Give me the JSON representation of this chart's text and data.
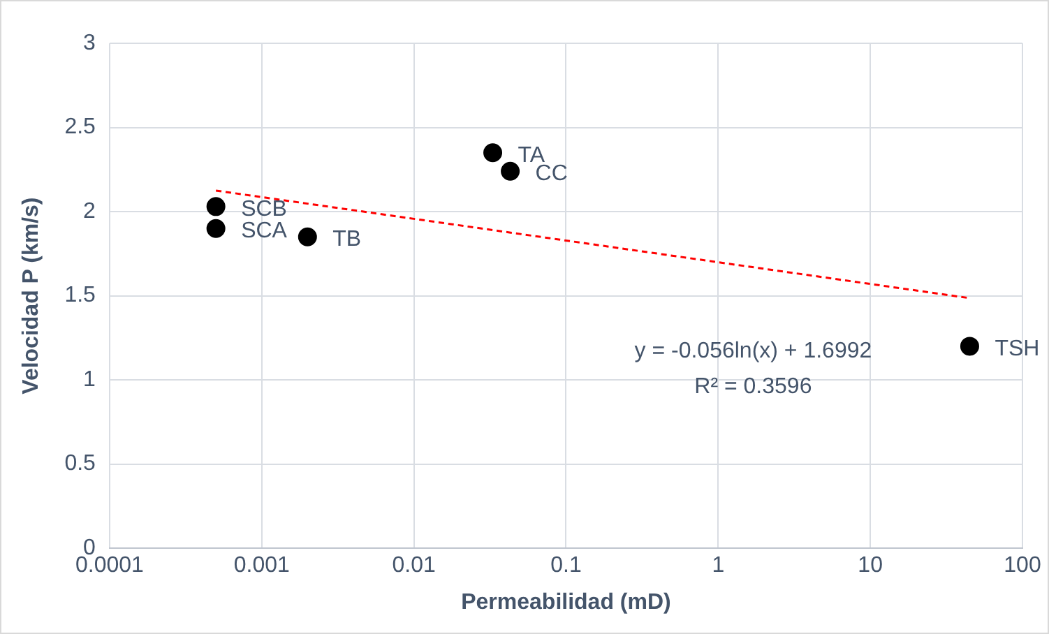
{
  "chart_data": {
    "type": "scatter",
    "xlabel": "Permeabilidad (mD)",
    "ylabel": "Velocidad P (km/s)",
    "log": "x",
    "xlim": [
      0.0001,
      100
    ],
    "xticks": [
      0.0001,
      0.001,
      0.01,
      0.1,
      1,
      10,
      100
    ],
    "ylim": [
      0,
      3
    ],
    "yticks": [
      0,
      0.5,
      1,
      1.5,
      2,
      2.5,
      3
    ],
    "grid": true,
    "legend": false,
    "marker": "circle",
    "series": [
      {
        "color": "#000000",
        "x": [
          0.0005,
          0.0005,
          0.002,
          0.033,
          0.043,
          45
        ],
        "values": [
          2.03,
          1.9,
          1.85,
          2.35,
          2.24,
          1.2
        ]
      },
      {
        "type": "line",
        "color": "#ff0000",
        "line_style": "dashed",
        "marker": "none",
        "x": [
          0.0005,
          45
        ],
        "values": [
          2.125,
          1.486
        ]
      }
    ],
    "annotations": [
      {
        "text": "SCB",
        "x": 0.0005,
        "y": 2.03
      },
      {
        "text": "SCA",
        "x": 0.0005,
        "y": 1.9
      },
      {
        "text": "TB",
        "x": 0.002,
        "y": 1.85
      },
      {
        "text": "TA",
        "x": 0.033,
        "y": 2.35
      },
      {
        "text": "CC",
        "x": 0.043,
        "y": 2.24
      },
      {
        "text": "TSH",
        "x": 45,
        "y": 1.2
      },
      "y = -0.056ln(x) + 1.6992",
      "R² = 0.3596"
    ]
  }
}
